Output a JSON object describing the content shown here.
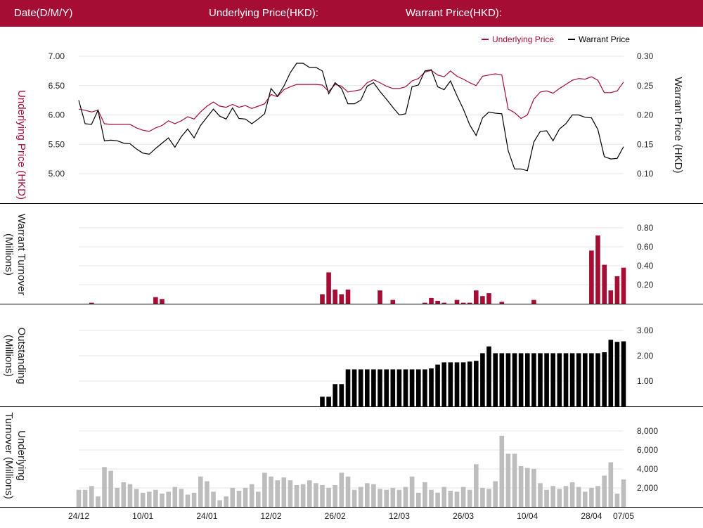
{
  "header": {
    "date_label": "Date(D/M/Y)",
    "underlying_label": "Underlying Price(HKD):",
    "warrant_label": "Warrant Price(HKD):"
  },
  "colors": {
    "header_bg": "#a50d34",
    "underlying": "#a50d34",
    "warrant": "#000000",
    "underlying_turnover_bar": "#bdbdbd"
  },
  "chart_data": [
    {
      "type": "line",
      "legend_position": "top-right",
      "legend": [
        "Underlying Price",
        "Warrant Price"
      ],
      "y_left_label": "Underlying Price (HKD)",
      "y_right_label": "Warrant  Price (HKD)",
      "y_left_ticks": [
        "7.00",
        "6.50",
        "6.00",
        "5.50",
        "5.00"
      ],
      "y_left_range": [
        4.8,
        7.2
      ],
      "y_right_ticks": [
        "0.30",
        "0.25",
        "0.20",
        "0.15",
        "0.10"
      ],
      "y_right_range": [
        0.08,
        0.32
      ],
      "grid": true,
      "series": [
        {
          "name": "Underlying Price",
          "axis": "left",
          "values": [
            6.1,
            6.08,
            6.05,
            6.08,
            5.85,
            5.84,
            5.84,
            5.84,
            5.84,
            5.78,
            5.74,
            5.72,
            5.78,
            5.82,
            5.9,
            5.85,
            5.9,
            5.97,
            5.93,
            6.05,
            6.15,
            6.22,
            6.15,
            6.13,
            6.18,
            6.13,
            6.16,
            6.11,
            6.15,
            6.19,
            6.35,
            6.31,
            6.43,
            6.48,
            6.52,
            6.52,
            6.52,
            6.52,
            6.51,
            6.4,
            6.52,
            6.49,
            6.39,
            6.41,
            6.43,
            6.55,
            6.6,
            6.55,
            6.49,
            6.45,
            6.45,
            6.48,
            6.58,
            6.62,
            6.73,
            6.76,
            6.68,
            6.65,
            6.75,
            6.66,
            6.61,
            6.55,
            6.5,
            6.66,
            6.68,
            6.7,
            6.68,
            6.1,
            6.04,
            5.94,
            6.0,
            6.27,
            6.39,
            6.41,
            6.37,
            6.45,
            6.52,
            6.59,
            6.62,
            6.61,
            6.65,
            6.59,
            6.38,
            6.38,
            6.41,
            6.56
          ]
        },
        {
          "name": "Warrant Price",
          "axis": "right",
          "values": [
            0.225,
            0.185,
            0.184,
            0.208,
            0.156,
            0.157,
            0.156,
            0.152,
            0.151,
            0.142,
            0.135,
            0.133,
            0.143,
            0.152,
            0.161,
            0.145,
            0.163,
            0.176,
            0.161,
            0.182,
            0.196,
            0.21,
            0.198,
            0.193,
            0.212,
            0.194,
            0.193,
            0.185,
            0.193,
            0.202,
            0.245,
            0.232,
            0.249,
            0.272,
            0.288,
            0.288,
            0.281,
            0.281,
            0.275,
            0.236,
            0.255,
            0.245,
            0.219,
            0.219,
            0.225,
            0.249,
            0.255,
            0.24,
            0.227,
            0.213,
            0.2,
            0.202,
            0.248,
            0.251,
            0.275,
            0.277,
            0.248,
            0.243,
            0.258,
            0.233,
            0.21,
            0.183,
            0.165,
            0.195,
            0.205,
            0.203,
            0.202,
            0.139,
            0.108,
            0.108,
            0.105,
            0.154,
            0.172,
            0.173,
            0.156,
            0.176,
            0.185,
            0.2,
            0.2,
            0.196,
            0.195,
            0.175,
            0.129,
            0.125,
            0.126,
            0.146
          ]
        }
      ]
    },
    {
      "type": "bar",
      "ylabel": "Warrant  Turnover (Millions)",
      "y_ticks": [
        "0.80",
        "0.60",
        "0.40",
        "0.20"
      ],
      "ylim": [
        0,
        0.8
      ],
      "color": "#a50d34",
      "values": [
        0,
        0,
        0.01,
        0,
        0,
        0,
        0,
        0,
        0,
        0,
        0,
        0,
        0.07,
        0.05,
        0,
        0,
        0,
        0,
        0,
        0,
        0,
        0,
        0,
        0,
        0,
        0,
        0,
        0,
        0,
        0,
        0,
        0,
        0,
        0,
        0,
        0,
        0,
        0,
        0.1,
        0.33,
        0.15,
        0.1,
        0.15,
        0,
        0,
        0,
        0,
        0.14,
        0,
        0.04,
        0,
        0,
        0,
        0,
        0.01,
        0.06,
        0.03,
        0.01,
        0,
        0.04,
        0.01,
        0.01,
        0.14,
        0.08,
        0.11,
        0,
        0.02,
        0,
        0,
        0,
        0,
        0.04,
        0,
        0,
        0,
        0,
        0,
        0,
        0,
        0,
        0.56,
        0.72,
        0.41,
        0.14,
        0.29,
        0.38
      ]
    },
    {
      "type": "bar",
      "ylabel": "Outstanding (Millions)",
      "y_ticks": [
        "3.00",
        "2.00",
        "1.00"
      ],
      "ylim": [
        0,
        3.0
      ],
      "color": "#000000",
      "values": [
        0,
        0,
        0,
        0,
        0,
        0,
        0,
        0,
        0,
        0,
        0,
        0,
        0,
        0,
        0,
        0,
        0,
        0,
        0,
        0,
        0,
        0,
        0,
        0,
        0,
        0,
        0,
        0,
        0,
        0,
        0,
        0,
        0,
        0,
        0,
        0,
        0,
        0,
        0.38,
        0.38,
        0.88,
        0.88,
        1.46,
        1.46,
        1.46,
        1.46,
        1.46,
        1.46,
        1.46,
        1.46,
        1.46,
        1.46,
        1.46,
        1.46,
        1.46,
        1.5,
        1.65,
        1.74,
        1.74,
        1.74,
        1.74,
        1.77,
        1.8,
        2.1,
        2.37,
        2.1,
        2.1,
        2.1,
        2.1,
        2.1,
        2.1,
        2.1,
        2.1,
        2.1,
        2.1,
        2.1,
        2.1,
        2.1,
        2.1,
        2.1,
        2.1,
        2.1,
        2.14,
        2.63,
        2.55,
        2.57
      ]
    },
    {
      "type": "bar",
      "ylabel": "Underlying Turnover (Millions)",
      "y_ticks": [
        "8,000",
        "6,000",
        "4,000",
        "2,000"
      ],
      "ylim": [
        0,
        8000
      ],
      "color": "#bdbdbd",
      "values": [
        1800,
        1800,
        2200,
        1100,
        4200,
        3800,
        2000,
        2600,
        2400,
        1900,
        1500,
        1600,
        1800,
        1400,
        1600,
        2100,
        1900,
        1300,
        1500,
        3200,
        2700,
        1600,
        700,
        1100,
        2000,
        1700,
        2000,
        2400,
        1600,
        3600,
        3200,
        2800,
        3100,
        2800,
        2300,
        2400,
        2800,
        2500,
        2300,
        2000,
        2300,
        3600,
        3200,
        1800,
        2100,
        2500,
        2400,
        1900,
        1800,
        2000,
        1800,
        2100,
        3200,
        1500,
        2600,
        1800,
        1500,
        2100,
        1700,
        1600,
        2100,
        1800,
        4500,
        2000,
        1900,
        2700,
        7500,
        5600,
        5600,
        4300,
        4100,
        4000,
        2500,
        1800,
        2200,
        1900,
        2200,
        2600,
        2100,
        1600,
        2000,
        2200,
        3300,
        4700,
        1400,
        2900
      ]
    }
  ],
  "x_axis": {
    "tick_labels": [
      "24/12",
      "10/01",
      "24/01",
      "12/02",
      "26/02",
      "12/03",
      "26/03",
      "10/04",
      "28/04",
      "07/05"
    ],
    "tick_indices": [
      0,
      10,
      20,
      30,
      40,
      50,
      60,
      70,
      80,
      85
    ]
  }
}
